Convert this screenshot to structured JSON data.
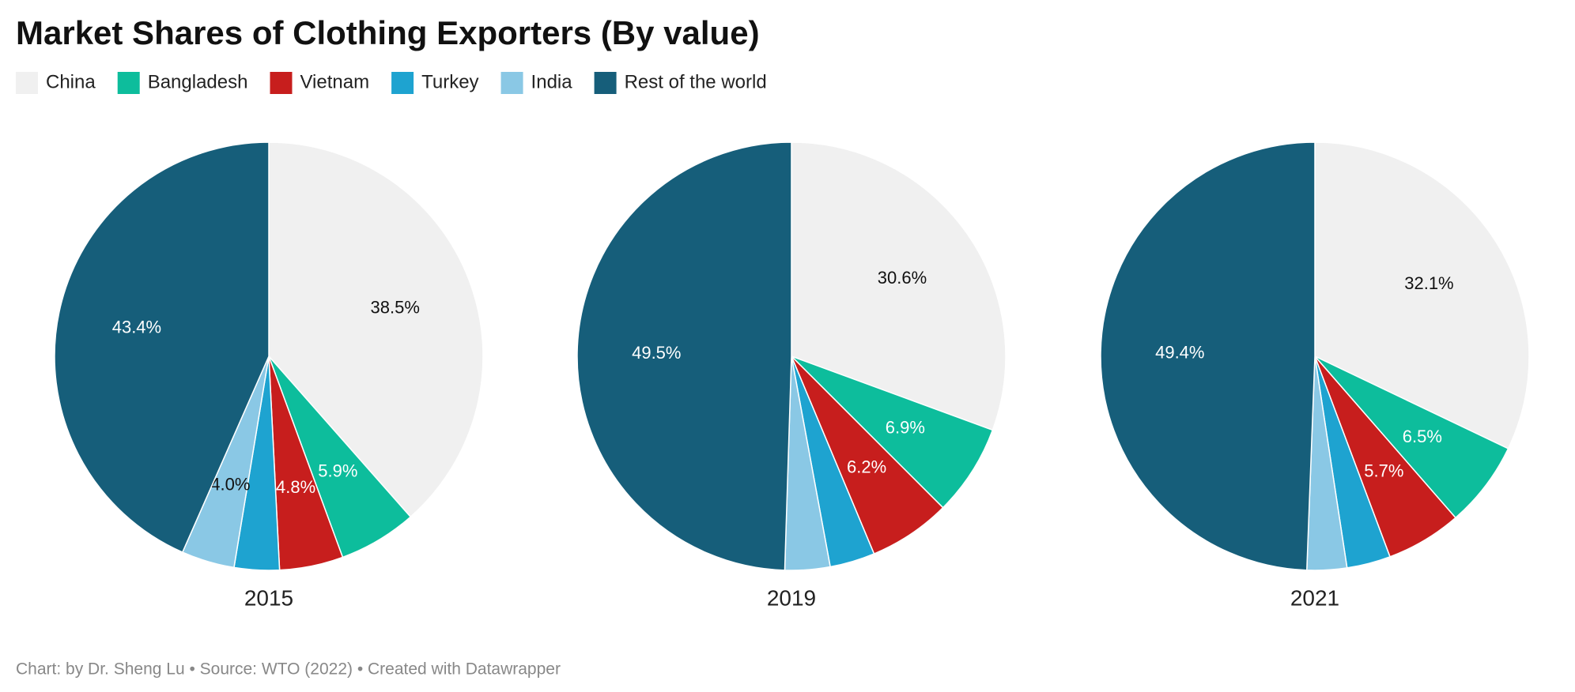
{
  "title": "Market Shares of Clothing Exporters (By value)",
  "source": "Chart: by Dr. Sheng Lu • Source: WTO (2022) • Created with Datawrapper",
  "chart_data": [
    {
      "type": "pie",
      "title": "2015",
      "categories": [
        "China",
        "Bangladesh",
        "Vietnam",
        "Turkey",
        "India",
        "Rest of the world"
      ],
      "colors": [
        "#f0f0f0",
        "#0dbd9c",
        "#c71e1d",
        "#1ea3d0",
        "#8ac8e5",
        "#165e7a"
      ],
      "values": [
        38.5,
        5.9,
        4.8,
        3.4,
        4.0,
        43.4
      ],
      "value_labels": [
        "38.5%",
        "5.9%",
        "4.8%",
        null,
        "4.0%",
        "43.4%"
      ]
    },
    {
      "type": "pie",
      "title": "2019",
      "categories": [
        "China",
        "Bangladesh",
        "Vietnam",
        "Turkey",
        "India",
        "Rest of the world"
      ],
      "colors": [
        "#f0f0f0",
        "#0dbd9c",
        "#c71e1d",
        "#1ea3d0",
        "#8ac8e5",
        "#165e7a"
      ],
      "values": [
        30.6,
        6.9,
        6.2,
        3.4,
        3.4,
        49.5
      ],
      "value_labels": [
        "30.6%",
        "6.9%",
        "6.2%",
        null,
        null,
        "49.5%"
      ]
    },
    {
      "type": "pie",
      "title": "2021",
      "categories": [
        "China",
        "Bangladesh",
        "Vietnam",
        "Turkey",
        "India",
        "Rest of the world"
      ],
      "colors": [
        "#f0f0f0",
        "#0dbd9c",
        "#c71e1d",
        "#1ea3d0",
        "#8ac8e5",
        "#165e7a"
      ],
      "values": [
        32.1,
        6.5,
        5.7,
        3.3,
        3.0,
        49.4
      ],
      "value_labels": [
        "32.1%",
        "6.5%",
        "5.7%",
        null,
        null,
        "49.4%"
      ]
    }
  ]
}
